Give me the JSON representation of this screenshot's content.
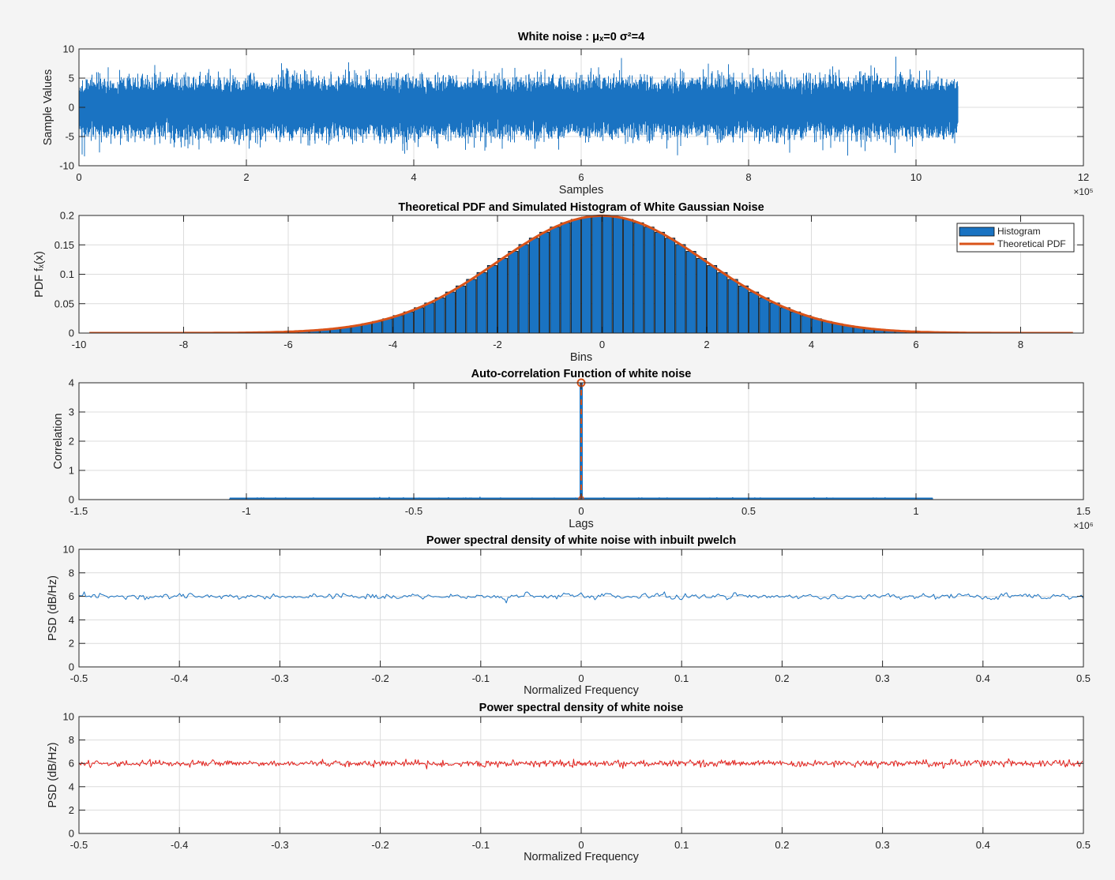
{
  "colors": {
    "background": "#f4f4f4",
    "axes_bg": "#ffffff",
    "grid": "#dcdcdc",
    "blue": "#1a73c2",
    "orange": "#d95319",
    "red": "#e3201b"
  },
  "chart_data": [
    {
      "id": "signal",
      "type": "line",
      "title": "White  noise  :  μₓ=0  σ²=4",
      "xlabel": "Samples",
      "ylabel": "Sample Values",
      "xlim": [
        0,
        1200000
      ],
      "ylim": [
        -10,
        10
      ],
      "xticks": [
        0,
        200000,
        400000,
        600000,
        800000,
        1000000,
        1200000
      ],
      "xtick_labels": [
        "0",
        "2",
        "4",
        "6",
        "8",
        "10",
        "12"
      ],
      "x_exponent": "×10⁵",
      "yticks": [
        -10,
        -5,
        0,
        5,
        10
      ],
      "ytick_labels": [
        "-10",
        "-5",
        "0",
        "5",
        "10"
      ],
      "grid": true,
      "mean": 0,
      "variance": 4,
      "num_samples": 1050000,
      "color": "#1a73c2"
    },
    {
      "id": "pdf",
      "type": "bar",
      "title": "Theoretical PDF and Simulated Histogram of White Gaussian Noise",
      "xlabel": "Bins",
      "ylabel": "PDF  fₓ(x)",
      "xlim": [
        -10,
        9.2
      ],
      "ylim": [
        0,
        0.2
      ],
      "xticks": [
        -10,
        -8,
        -6,
        -4,
        -2,
        0,
        2,
        4,
        6,
        8
      ],
      "xtick_labels": [
        "-10",
        "-8",
        "-6",
        "-4",
        "-2",
        "0",
        "2",
        "4",
        "6",
        "8"
      ],
      "yticks": [
        0,
        0.05,
        0.1,
        0.15,
        0.2
      ],
      "ytick_labels": [
        "0",
        "0.05",
        "0.1",
        "0.15",
        "0.2"
      ],
      "grid": true,
      "mean": 0,
      "variance": 4,
      "bins_x": [
        -6.1,
        -5.9,
        -5.7,
        -5.5,
        -5.3,
        -5.1,
        -4.9,
        -4.7,
        -4.5,
        -4.3,
        -4.1,
        -3.9,
        -3.7,
        -3.5,
        -3.3,
        -3.1,
        -2.9,
        -2.7,
        -2.5,
        -2.3,
        -2.1,
        -1.9,
        -1.7,
        -1.5,
        -1.3,
        -1.1,
        -0.9,
        -0.7,
        -0.5,
        -0.3,
        -0.1,
        0.1,
        0.3,
        0.5,
        0.7,
        0.9,
        1.1,
        1.3,
        1.5,
        1.7,
        1.9,
        2.1,
        2.3,
        2.5,
        2.7,
        2.9,
        3.1,
        3.3,
        3.5,
        3.7,
        3.9,
        4.1,
        4.3,
        4.5,
        4.7,
        4.9,
        5.1,
        5.3,
        5.5,
        5.7,
        5.9,
        6.1
      ],
      "bin_width": 0.2,
      "curve_x_range": [
        -9.8,
        9.0
      ],
      "legend": {
        "position": "top-right",
        "entries": [
          {
            "label": "Histogram",
            "kind": "bar",
            "color": "#1a73c2"
          },
          {
            "label": "Theoretical PDF",
            "kind": "line",
            "color": "#d95319"
          }
        ]
      }
    },
    {
      "id": "acf",
      "type": "line",
      "title": "Auto-correlation Function of white noise",
      "xlabel": "Lags",
      "ylabel": "Correlation",
      "xlim": [
        -1500000,
        1500000
      ],
      "ylim": [
        0,
        4
      ],
      "xticks": [
        -1500000,
        -1000000,
        -500000,
        0,
        500000,
        1000000,
        1500000
      ],
      "xtick_labels": [
        "-1.5",
        "-1",
        "-0.5",
        "0",
        "0.5",
        "1",
        "1.5"
      ],
      "x_exponent": "×10⁶",
      "yticks": [
        0,
        1,
        2,
        3,
        4
      ],
      "ytick_labels": [
        "0",
        "1",
        "2",
        "3",
        "4"
      ],
      "grid": true,
      "lag_range": [
        -1050000,
        1050000
      ],
      "peak": {
        "x": 0,
        "y": 4
      },
      "color": "#1a73c2",
      "marker_color": "#d95319"
    },
    {
      "id": "psd_pwelch",
      "type": "line",
      "title": "Power spectral density of white noise with inbuilt pwelch",
      "xlabel": "Normalized Frequency",
      "ylabel": "PSD (dB/Hz)",
      "xlim": [
        -0.5,
        0.5
      ],
      "ylim": [
        0,
        10
      ],
      "xticks": [
        -0.5,
        -0.4,
        -0.3,
        -0.2,
        -0.1,
        0,
        0.1,
        0.2,
        0.3,
        0.4,
        0.5
      ],
      "xtick_labels": [
        "-0.5",
        "-0.4",
        "-0.3",
        "-0.2",
        "-0.1",
        "0",
        "0.1",
        "0.2",
        "0.3",
        "0.4",
        "0.5"
      ],
      "yticks": [
        0,
        2,
        4,
        6,
        8,
        10
      ],
      "ytick_labels": [
        "0",
        "2",
        "4",
        "6",
        "8",
        "10"
      ],
      "grid": true,
      "level_db": 6,
      "color": "#1a73c2"
    },
    {
      "id": "psd",
      "type": "line",
      "title": "Power spectral density of white noise",
      "xlabel": "Normalized Frequency",
      "ylabel": "PSD (dB/Hz)",
      "xlim": [
        -0.5,
        0.5
      ],
      "ylim": [
        0,
        10
      ],
      "xticks": [
        -0.5,
        -0.4,
        -0.3,
        -0.2,
        -0.1,
        0,
        0.1,
        0.2,
        0.3,
        0.4,
        0.5
      ],
      "xtick_labels": [
        "-0.5",
        "-0.4",
        "-0.3",
        "-0.2",
        "-0.1",
        "0",
        "0.1",
        "0.2",
        "0.3",
        "0.4",
        "0.5"
      ],
      "yticks": [
        0,
        2,
        4,
        6,
        8,
        10
      ],
      "ytick_labels": [
        "0",
        "2",
        "4",
        "6",
        "8",
        "10"
      ],
      "grid": true,
      "level_db": 6,
      "color": "#e3201b"
    }
  ]
}
